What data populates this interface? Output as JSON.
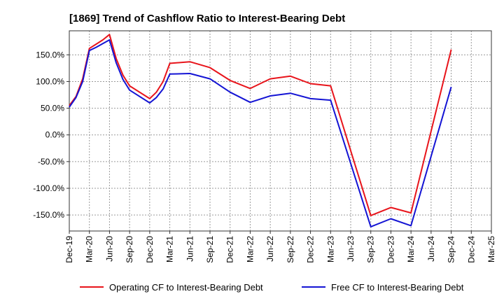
{
  "chart_data": {
    "type": "line",
    "title": "[1869]  Trend of Cashflow Ratio to Interest-Bearing Debt",
    "xlabel": "",
    "ylabel": "",
    "x_tick_labels": [
      "Dec-19",
      "Mar-20",
      "Jun-20",
      "Sep-20",
      "Dec-20",
      "Mar-21",
      "Jun-21",
      "Sep-21",
      "Dec-21",
      "Mar-22",
      "Jun-22",
      "Sep-22",
      "Dec-22",
      "Mar-23",
      "Jun-23",
      "Sep-23",
      "Dec-23",
      "Mar-24",
      "Jun-24",
      "Sep-24",
      "Dec-24",
      "Mar-25"
    ],
    "y_tick_labels": [
      "150.0%",
      "100.0%",
      "50.0%",
      "0.0%",
      "-50.0%",
      "-100.0%",
      "-150.0%"
    ],
    "y_ticks": [
      150,
      100,
      50,
      0,
      -50,
      -100,
      -150
    ],
    "ylim": [
      -180,
      195
    ],
    "grid": true,
    "legend_position": "bottom",
    "series": [
      {
        "name": "Operating CF to Interest-Bearing Debt",
        "color": "#e8141b",
        "points": [
          [
            "Dec-19",
            55
          ],
          [
            "Jan-20",
            72
          ],
          [
            "Feb-20",
            105
          ],
          [
            "Mar-20",
            162
          ],
          [
            "Apr-20",
            170
          ],
          [
            "May-20",
            178
          ],
          [
            "Jun-20",
            188
          ],
          [
            "Jul-20",
            143
          ],
          [
            "Aug-20",
            112
          ],
          [
            "Sep-20",
            92
          ],
          [
            "Dec-20",
            68
          ],
          [
            "Jan-21",
            80
          ],
          [
            "Feb-21",
            100
          ],
          [
            "Mar-21",
            134
          ],
          [
            "Jun-21",
            137
          ],
          [
            "Sep-21",
            126
          ],
          [
            "Dec-21",
            102
          ],
          [
            "Mar-22",
            87
          ],
          [
            "Jun-22",
            105
          ],
          [
            "Sep-22",
            110
          ],
          [
            "Dec-22",
            96
          ],
          [
            "Mar-23",
            92
          ],
          [
            "Sep-23",
            -151
          ],
          [
            "Dec-23",
            -136
          ],
          [
            "Mar-24",
            -146
          ],
          [
            "Sep-24",
            160
          ]
        ]
      },
      {
        "name": "Free CF to Interest-Bearing Debt",
        "color": "#1414d4",
        "points": [
          [
            "Dec-19",
            52
          ],
          [
            "Jan-20",
            70
          ],
          [
            "Feb-20",
            100
          ],
          [
            "Mar-20",
            158
          ],
          [
            "Apr-20",
            164
          ],
          [
            "May-20",
            171
          ],
          [
            "Jun-20",
            178
          ],
          [
            "Jul-20",
            135
          ],
          [
            "Aug-20",
            104
          ],
          [
            "Sep-20",
            84
          ],
          [
            "Dec-20",
            60
          ],
          [
            "Jan-21",
            70
          ],
          [
            "Feb-21",
            86
          ],
          [
            "Mar-21",
            114
          ],
          [
            "Jun-21",
            115
          ],
          [
            "Sep-21",
            105
          ],
          [
            "Dec-21",
            80
          ],
          [
            "Mar-22",
            61
          ],
          [
            "Jun-22",
            73
          ],
          [
            "Sep-22",
            78
          ],
          [
            "Dec-22",
            68
          ],
          [
            "Mar-23",
            65
          ],
          [
            "Sep-23",
            -172
          ],
          [
            "Dec-23",
            -157
          ],
          [
            "Mar-24",
            -170
          ],
          [
            "Sep-24",
            90
          ]
        ]
      }
    ]
  }
}
